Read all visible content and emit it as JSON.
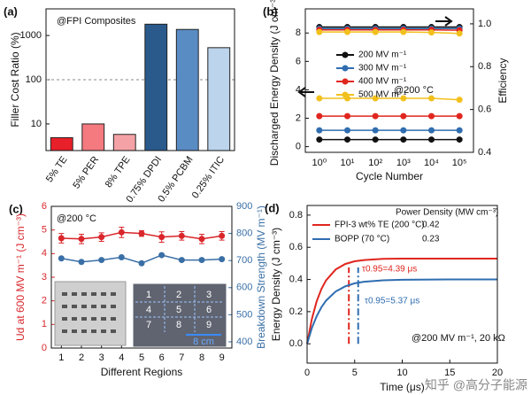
{
  "chart_data": [
    {
      "type": "bar",
      "panel_label": "(a)",
      "ylabel": "Filler Cost Ratio (%)",
      "annotations": [
        "@FPI Composites"
      ],
      "categories": [
        "5% TE",
        "5% PER",
        "8% TPE",
        "0.75% DPDI",
        "0.5% PCBM",
        "0.25% ITIC"
      ],
      "values": [
        4.9,
        10,
        5.8,
        1800,
        1370,
        530
      ],
      "colors": [
        "#e8202a",
        "#f47a80",
        "#f4a2a6",
        "#2a5a8c",
        "#5a8cc4",
        "#bcd4ec"
      ],
      "log_scale": "y",
      "ylim": [
        2.5,
        4000
      ],
      "yticks": [
        10,
        100,
        1000
      ],
      "reference_line": 100
    },
    {
      "type": "line",
      "panel_label": "(b)",
      "xlabel": "Cycle Number",
      "ylabel": "Discharged Energy Density (J cm⁻³)",
      "y2label": "Efficiency",
      "annotations": [
        "@200 °C"
      ],
      "categories": [
        "10⁰",
        "10¹",
        "10²",
        "10³",
        "10⁴",
        "10⁵"
      ],
      "ylim": [
        -0.4,
        9.7
      ],
      "yticks": [
        0,
        2,
        4,
        6,
        8
      ],
      "y2lim": [
        0.4,
        1.07
      ],
      "y2ticks": [
        0.4,
        0.6,
        0.8,
        {
          "value": 1.0,
          "label": "1.0"
        }
      ],
      "legend": "center",
      "series": [
        {
          "name": "200 MV m⁻¹",
          "color": "#111111",
          "values": [
            0.5,
            0.5,
            0.5,
            0.5,
            0.5,
            0.5
          ]
        },
        {
          "name": "300 MV m⁻¹",
          "color": "#2f6db0",
          "values": [
            1.15,
            1.15,
            1.15,
            1.15,
            1.15,
            1.15
          ]
        },
        {
          "name": "400 MV m⁻¹",
          "color": "#e0261f",
          "values": [
            2.15,
            2.15,
            2.15,
            2.15,
            2.15,
            2.15
          ]
        },
        {
          "name": "500 MV m⁻¹",
          "color": "#f2c01d",
          "values": [
            3.4,
            3.4,
            3.4,
            3.4,
            3.4,
            3.3
          ]
        },
        {
          "color": "#111111",
          "axis": "y2",
          "values": [
            0.985,
            0.985,
            0.985,
            0.985,
            0.985,
            0.985
          ]
        },
        {
          "color": "#2f6db0",
          "axis": "y2",
          "values": [
            0.978,
            0.978,
            0.978,
            0.978,
            0.978,
            0.978
          ]
        },
        {
          "color": "#e0261f",
          "axis": "y2",
          "values": [
            0.972,
            0.972,
            0.972,
            0.972,
            0.972,
            0.97
          ]
        },
        {
          "color": "#f2c01d",
          "axis": "y2",
          "values": [
            0.962,
            0.962,
            0.962,
            0.962,
            0.96,
            0.955
          ]
        }
      ]
    },
    {
      "type": "line",
      "panel_label": "(c)",
      "xlabel": "Different Regions",
      "ylabel": "Ud at 600 MV m⁻¹ (J cm⁻³)",
      "y2label": "Breakdown Strength (MV m⁻¹)",
      "annotations": [
        "@200 °C"
      ],
      "x": [
        1,
        2,
        3,
        4,
        5,
        6,
        7,
        8,
        9
      ],
      "xlim": [
        0.5,
        9.5
      ],
      "xticks": [
        1,
        2,
        3,
        4,
        5,
        6,
        7,
        8,
        9
      ],
      "ylim": [
        0,
        6
      ],
      "yticks": [
        0,
        1,
        2,
        3,
        4,
        5,
        6
      ],
      "y2lim": [
        377,
        900
      ],
      "y2ticks": [
        400,
        500,
        600,
        700,
        800,
        900
      ],
      "color_axes": true,
      "inset_labels": [
        "1",
        "2",
        "3",
        "4",
        "5",
        "6",
        "7",
        "8",
        "9"
      ],
      "scale_bar": "8 cm",
      "series": [
        {
          "color": "#d9262b",
          "values": [
            4.65,
            4.62,
            4.7,
            4.9,
            4.85,
            4.7,
            4.75,
            4.62,
            4.75
          ],
          "errors": [
            0.2,
            0.2,
            0.18,
            0.22,
            0.12,
            0.22,
            0.18,
            0.2,
            0.18
          ]
        },
        {
          "color": "#3a6fa6",
          "axis": "y2",
          "values": [
            708,
            695,
            702,
            712,
            690,
            720,
            702,
            702,
            705
          ]
        }
      ]
    },
    {
      "type": "line",
      "panel_label": "(d)",
      "xlabel": "Time (μs)",
      "ylabel": "Energy Density (J cm⁻³)",
      "legend": "upper-left",
      "legend_title": "Power Density (MW cm⁻³)",
      "annotations": [
        "τ0.95=4.39 μs",
        "τ0.95=5.37 μs",
        "@200 MV m⁻¹, 20 kΩ"
      ],
      "vlines": [
        4.39,
        5.37
      ],
      "x": [
        0,
        0.5,
        1,
        1.5,
        2,
        3,
        4,
        5,
        6,
        8,
        10,
        15,
        20
      ],
      "xlim": [
        0,
        20
      ],
      "xticks": [
        0,
        5,
        10,
        15,
        20
      ],
      "ylim": [
        -0.12,
        0.86
      ],
      "yticks": [
        {
          "value": 0,
          "label": "0.0"
        },
        0.2,
        0.4,
        0.6,
        0.8
      ],
      "markers": false,
      "series": [
        {
          "name": "FPI-3 wt% TE (200 °C)",
          "color": "#e0261f",
          "power_density": 0.42,
          "values": [
            0,
            0.154,
            0.263,
            0.34,
            0.395,
            0.462,
            0.496,
            0.513,
            0.521,
            0.528,
            0.53,
            0.53,
            0.53
          ]
        },
        {
          "name": "BOPP (70 °C)",
          "color": "#2f6db0",
          "power_density": 0.23,
          "values": [
            0,
            0.098,
            0.171,
            0.227,
            0.269,
            0.325,
            0.357,
            0.376,
            0.386,
            0.395,
            0.398,
            0.4,
            0.4
          ]
        }
      ]
    }
  ],
  "watermark": "知乎 @高分子能源"
}
